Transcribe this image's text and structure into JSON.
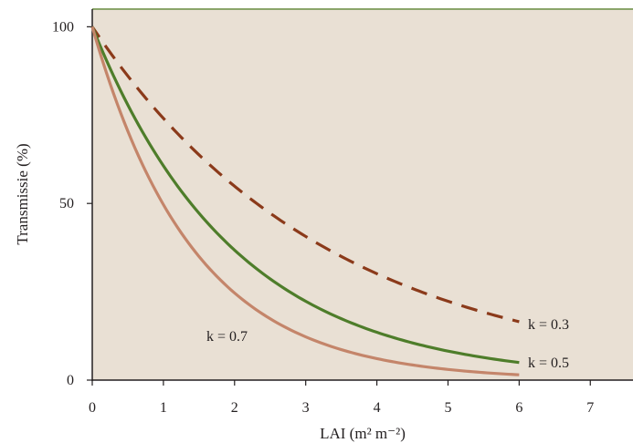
{
  "chart_data": {
    "type": "line",
    "title": "",
    "xlabel": "LAI (m² m⁻²)",
    "ylabel": "Transmissie (%)",
    "xlim": [
      0,
      7.6
    ],
    "ylim": [
      0,
      105
    ],
    "xticks": [
      "0",
      "1",
      "2",
      "3",
      "4",
      "5",
      "6",
      "7"
    ],
    "yticks": [
      "0",
      "50",
      "100"
    ],
    "x": [
      0,
      0.5,
      1,
      1.5,
      2,
      2.5,
      3,
      3.5,
      4,
      4.5,
      5,
      5.5,
      6
    ],
    "series": [
      {
        "name": "k = 0.3",
        "color": "#8b3a1a",
        "style": "dashed",
        "values": [
          100,
          86.1,
          74.1,
          63.8,
          54.9,
          47.2,
          40.7,
          35.0,
          30.1,
          25.9,
          22.3,
          19.2,
          16.5
        ]
      },
      {
        "name": "k = 0.5",
        "color": "#4e7d2a",
        "style": "solid",
        "values": [
          100,
          77.9,
          60.7,
          47.2,
          36.8,
          28.7,
          22.3,
          17.4,
          13.5,
          10.5,
          8.2,
          6.4,
          5.0
        ]
      },
      {
        "name": "k = 0.7",
        "color": "#c4856a",
        "style": "solid",
        "values": [
          100,
          70.5,
          49.7,
          35.0,
          24.7,
          17.4,
          12.2,
          8.6,
          6.1,
          4.3,
          3.0,
          2.1,
          1.5
        ]
      }
    ],
    "background": "#e9e0d4",
    "frame_color": "#8aa56a",
    "grid": false
  }
}
